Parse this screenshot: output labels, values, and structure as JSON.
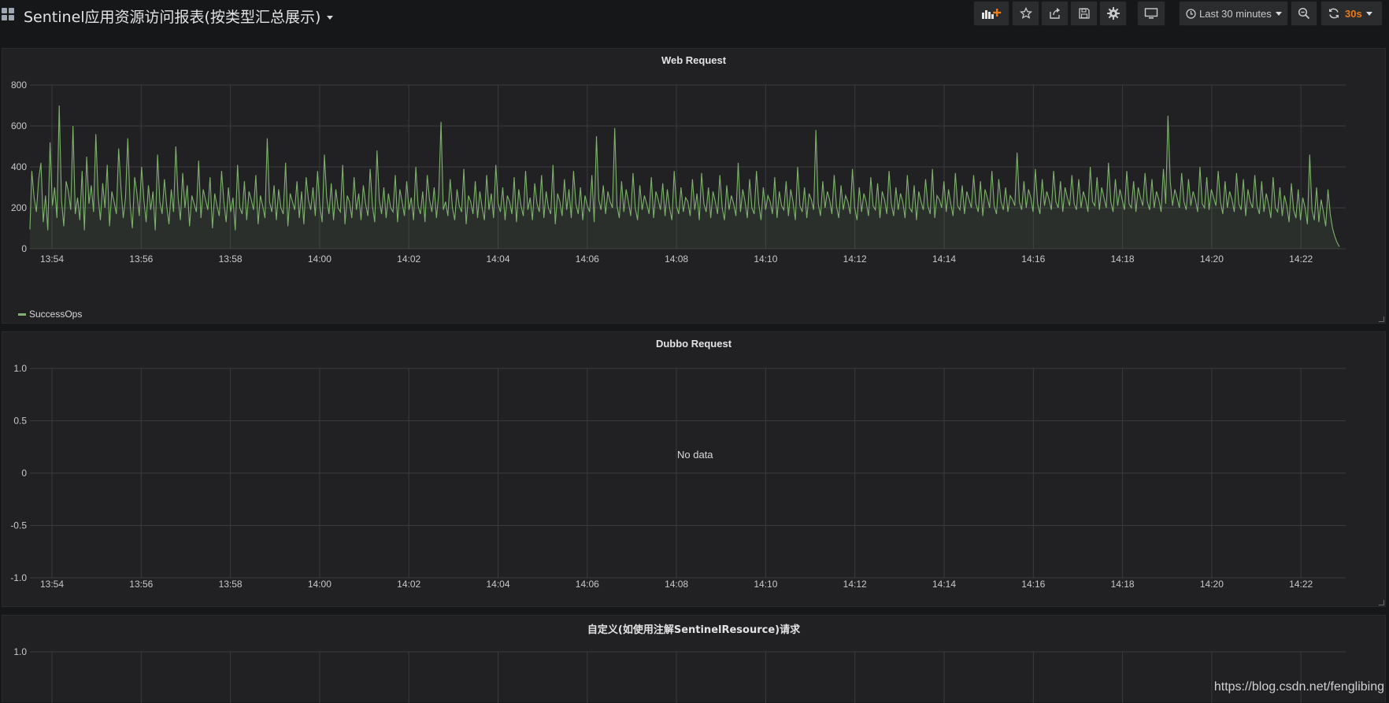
{
  "dashboard": {
    "title": "Sentinel应用资源访问报表(按类型汇总展示)"
  },
  "navbar": {
    "buttons": [
      {
        "name": "add-panel-button",
        "icon": "add-panel-icon"
      },
      {
        "name": "star-button",
        "icon": "star-icon"
      },
      {
        "name": "share-button",
        "icon": "share-icon"
      },
      {
        "name": "save-button",
        "icon": "save-icon"
      },
      {
        "name": "settings-button",
        "icon": "gear-icon"
      },
      {
        "name": "tv-mode-button",
        "icon": "monitor-icon"
      }
    ],
    "time_picker": {
      "label": "Last 30 minutes",
      "icon": "clock-icon"
    },
    "zoom_out": {
      "icon": "zoom-out-icon"
    },
    "refresh": {
      "label": "30s",
      "icon": "refresh-icon"
    },
    "accent_color": "#eb7b18"
  },
  "panels": [
    {
      "title": "Web Request",
      "legend": [
        {
          "name": "SuccessOps",
          "color": "#7eb26d"
        }
      ]
    },
    {
      "title": "Dubbo Request",
      "empty_text": "No data"
    },
    {
      "title": "自定义(如使用注解SentinelResource)请求"
    }
  ],
  "watermark": "https://blog.csdn.net/fenglibing",
  "chart_data": [
    {
      "type": "line",
      "title": "Web Request",
      "x_ticks": [
        "13:54",
        "13:56",
        "13:58",
        "14:00",
        "14:02",
        "14:04",
        "14:06",
        "14:08",
        "14:10",
        "14:12",
        "14:14",
        "14:16",
        "14:18",
        "14:20",
        "14:22"
      ],
      "xlim": [
        "13:53:30",
        "14:23:40"
      ],
      "ylim": [
        0,
        800
      ],
      "y_ticks": [
        0,
        200,
        400,
        600,
        800
      ],
      "series": [
        {
          "name": "SuccessOps",
          "color": "#7eb26d",
          "fill": true,
          "sample_interval_s": 2,
          "x_start": "13:53:30",
          "values": [
            95,
            380,
            250,
            180,
            340,
            420,
            130,
            260,
            90,
            520,
            210,
            300,
            150,
            700,
            240,
            110,
            330,
            280,
            190,
            600,
            170,
            250,
            140,
            380,
            90,
            450,
            220,
            310,
            180,
            560,
            260,
            140,
            320,
            200,
            410,
            110,
            280,
            230,
            170,
            490,
            300,
            150,
            250,
            540,
            220,
            100,
            350,
            270,
            160,
            400,
            240,
            130,
            310,
            190,
            280,
            90,
            460,
            230,
            170,
            340,
            210,
            120,
            290,
            180,
            500,
            250,
            140,
            370,
            200,
            310,
            110,
            260,
            220,
            180,
            430,
            150,
            290,
            240,
            190,
            350,
            100,
            270,
            210,
            160,
            380,
            230,
            130,
            300,
            180,
            250,
            90,
            410,
            200,
            170,
            330,
            140,
            280,
            240,
            190,
            360,
            120,
            260,
            210,
            150,
            540,
            230,
            180,
            310,
            140,
            290,
            200,
            170,
            420,
            110,
            270,
            230,
            190,
            330,
            150,
            280,
            120,
            350,
            240,
            190,
            300,
            160,
            380,
            210,
            130,
            460,
            250,
            170,
            320,
            140,
            290,
            200,
            180,
            410,
            120,
            260,
            230,
            150,
            350,
            190,
            270,
            140,
            310,
            220,
            160,
            390,
            210,
            130,
            480,
            240,
            170,
            300,
            150,
            270,
            200,
            180,
            360,
            130,
            290,
            230,
            160,
            330,
            190,
            250,
            140,
            400,
            210,
            170,
            280,
            130,
            360,
            240,
            180,
            300,
            150,
            270,
            620,
            190,
            230,
            160,
            340,
            200,
            140,
            290,
            210,
            180,
            390,
            120,
            260,
            230,
            170,
            330,
            150,
            280,
            200,
            140,
            360,
            190,
            270,
            150,
            410,
            220,
            180,
            300,
            140,
            260,
            230,
            170,
            350,
            130,
            290,
            210,
            160,
            380,
            190,
            250,
            140,
            320,
            220,
            180,
            360,
            150,
            280,
            200,
            170,
            410,
            120,
            270,
            230,
            160,
            340,
            190,
            290,
            150,
            380,
            220,
            170,
            300,
            140,
            260,
            210,
            180,
            360,
            130,
            550,
            240,
            190,
            310,
            170,
            280,
            230,
            200,
            590,
            210,
            150,
            330,
            180,
            290,
            230,
            160,
            370,
            200,
            140,
            310,
            190,
            260,
            220,
            170,
            350,
            150,
            280,
            240,
            190,
            320,
            160,
            290,
            200,
            140,
            380,
            210,
            170,
            300,
            180,
            250,
            230,
            160,
            340,
            190,
            270,
            140,
            370,
            220,
            180,
            300,
            150,
            280,
            230,
            170,
            360,
            200,
            140,
            310,
            190,
            260,
            220,
            160,
            420,
            180,
            290,
            230,
            150,
            340,
            200,
            170,
            380,
            220,
            140,
            300,
            190,
            260,
            230,
            170,
            350,
            150,
            280,
            210,
            190,
            330,
            160,
            290,
            230,
            140,
            400,
            210,
            180,
            300,
            150,
            270,
            240,
            190,
            580,
            220,
            160,
            330,
            200,
            280,
            240,
            170,
            360,
            210,
            150,
            310,
            190,
            260,
            230,
            170,
            390,
            200,
            140,
            300,
            180,
            270,
            230,
            160,
            350,
            210,
            190,
            320,
            150,
            280,
            240,
            170,
            380,
            220,
            160,
            300,
            190,
            270,
            230,
            150,
            360,
            200,
            180,
            310,
            140,
            280,
            230,
            190,
            340,
            210,
            170,
            390,
            150,
            260,
            240,
            200,
            330,
            180,
            290,
            220,
            160,
            370,
            210,
            190,
            310,
            170,
            280,
            240,
            200,
            360,
            220,
            180,
            330,
            160,
            290,
            250,
            200,
            380,
            210,
            170,
            340,
            230,
            190,
            300,
            180,
            260,
            240,
            210,
            470,
            230,
            190,
            330,
            200,
            290,
            250,
            180,
            390,
            220,
            170,
            340,
            210,
            280,
            240,
            190,
            380,
            230,
            200,
            330,
            180,
            300,
            250,
            210,
            360,
            220,
            190,
            340,
            200,
            280,
            240,
            180,
            400,
            230,
            210,
            350,
            190,
            300,
            250,
            200,
            420,
            230,
            180,
            340,
            210,
            290,
            240,
            190,
            380,
            220,
            200,
            330,
            180,
            300,
            250,
            210,
            370,
            230,
            190,
            340,
            200,
            280,
            240,
            180,
            390,
            220,
            650,
            330,
            210,
            290,
            250,
            200,
            370,
            230,
            190,
            340,
            210,
            280,
            240,
            180,
            400,
            220,
            200,
            350,
            190,
            290,
            250,
            210,
            380,
            230,
            170,
            330,
            200,
            280,
            240,
            180,
            370,
            220,
            190,
            340,
            160,
            290,
            230,
            200,
            360,
            210,
            170,
            330,
            180,
            270,
            220,
            150,
            350,
            200,
            180,
            300,
            160,
            260,
            210,
            130,
            320,
            190,
            150,
            290,
            140,
            250,
            200,
            120,
            460,
            190,
            140,
            300,
            130,
            240,
            180,
            110,
            290,
            170,
            100,
            60,
            30,
            10
          ]
        }
      ]
    },
    {
      "type": "line",
      "title": "Dubbo Request",
      "x_ticks": [
        "13:54",
        "13:56",
        "13:58",
        "14:00",
        "14:02",
        "14:04",
        "14:06",
        "14:08",
        "14:10",
        "14:12",
        "14:14",
        "14:16",
        "14:18",
        "14:20",
        "14:22"
      ],
      "ylim": [
        -1.0,
        1.0
      ],
      "y_ticks": [
        "1.0",
        "0.5",
        "0",
        "-0.5",
        "-1.0"
      ],
      "series": []
    },
    {
      "type": "line",
      "title": "自定义(如使用注解SentinelResource)请求",
      "y_ticks": [
        "1.0"
      ],
      "series": []
    }
  ]
}
